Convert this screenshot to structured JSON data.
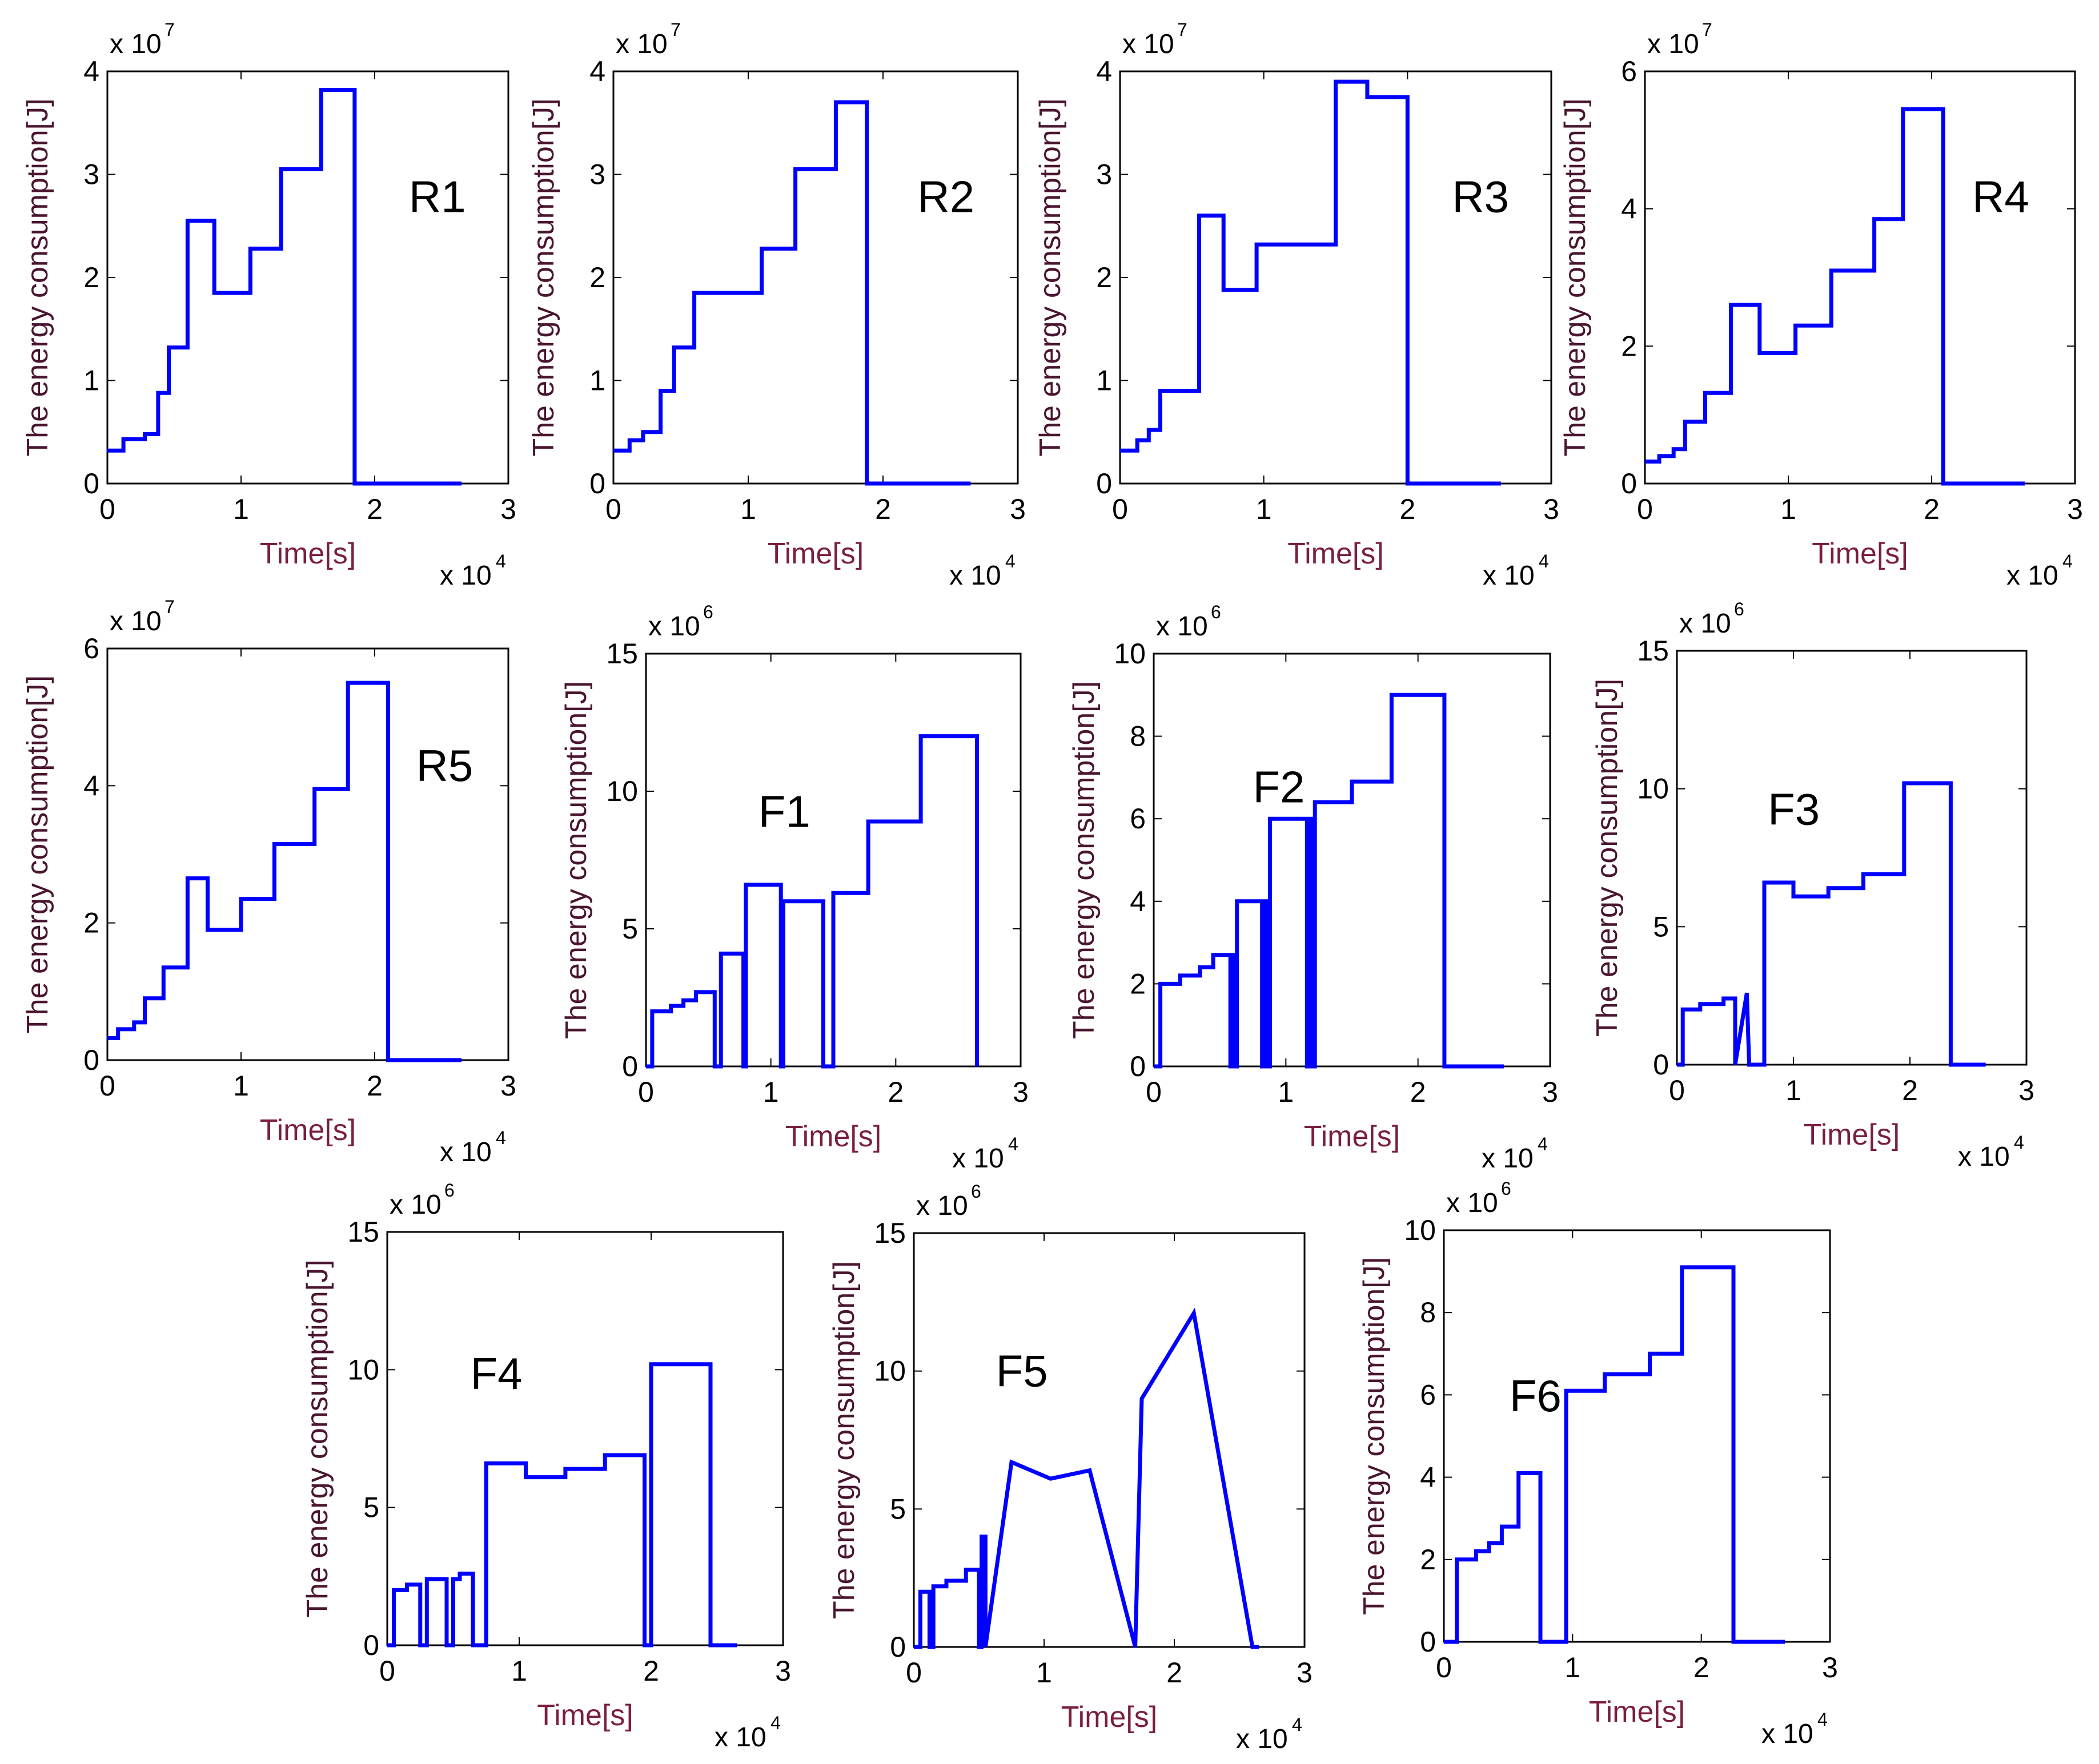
{
  "chart_data": [
    {
      "type": "line",
      "panel_label": "R1",
      "title": "",
      "xlabel": "Time[s]",
      "ylabel": "The energy consumption[J]",
      "x_multiplier": "x 10",
      "x_exponent": "4",
      "y_multiplier": "x 10",
      "y_exponent": "7",
      "xlim": [
        0,
        3
      ],
      "ylim": [
        0,
        4
      ],
      "xticks": [
        "0",
        "1",
        "2",
        "3"
      ],
      "yticks": [
        "0",
        "1",
        "2",
        "3",
        "4"
      ],
      "series": [
        {
          "name": "R1",
          "color": "#0000ff",
          "x": [
            0,
            0.12,
            0.12,
            0.28,
            0.28,
            0.38,
            0.38,
            0.46,
            0.46,
            0.6,
            0.6,
            0.8,
            0.8,
            1.07,
            1.07,
            1.3,
            1.3,
            1.6,
            1.6,
            1.85,
            1.85,
            2.65
          ],
          "y": [
            0.32,
            0.32,
            0.43,
            0.43,
            0.48,
            0.48,
            0.88,
            0.88,
            1.32,
            1.32,
            2.55,
            2.55,
            1.85,
            1.85,
            2.28,
            2.28,
            3.05,
            3.05,
            3.82,
            3.82,
            0.0,
            0.0
          ]
        }
      ]
    },
    {
      "type": "line",
      "panel_label": "R2",
      "title": "",
      "xlabel": "Time[s]",
      "ylabel": "The energy consumption[J]",
      "x_multiplier": "x 10",
      "x_exponent": "4",
      "y_multiplier": "x 10",
      "y_exponent": "7",
      "xlim": [
        0,
        3
      ],
      "ylim": [
        0,
        4
      ],
      "xticks": [
        "0",
        "1",
        "2",
        "3"
      ],
      "yticks": [
        "0",
        "1",
        "2",
        "3",
        "4"
      ],
      "series": [
        {
          "name": "R2",
          "color": "#0000ff",
          "x": [
            0,
            0.12,
            0.12,
            0.22,
            0.22,
            0.35,
            0.35,
            0.45,
            0.45,
            0.6,
            0.6,
            1.1,
            1.1,
            1.35,
            1.35,
            1.65,
            1.65,
            1.88,
            1.88,
            2.65
          ],
          "y": [
            0.32,
            0.32,
            0.42,
            0.42,
            0.5,
            0.5,
            0.9,
            0.9,
            1.32,
            1.32,
            1.85,
            1.85,
            2.28,
            2.28,
            3.05,
            3.05,
            3.7,
            3.7,
            0.0,
            0.0
          ]
        }
      ]
    },
    {
      "type": "line",
      "panel_label": "R3",
      "title": "",
      "xlabel": "Time[s]",
      "ylabel": "The energy consumption[J]",
      "x_multiplier": "x 10",
      "x_exponent": "4",
      "y_multiplier": "x 10",
      "y_exponent": "7",
      "xlim": [
        0,
        3
      ],
      "ylim": [
        0,
        4
      ],
      "xticks": [
        "0",
        "1",
        "2",
        "3"
      ],
      "yticks": [
        "0",
        "1",
        "2",
        "3",
        "4"
      ],
      "series": [
        {
          "name": "R3",
          "color": "#0000ff",
          "x": [
            0,
            0.12,
            0.12,
            0.2,
            0.2,
            0.28,
            0.28,
            0.55,
            0.55,
            0.72,
            0.72,
            0.95,
            0.95,
            1.5,
            1.5,
            1.72,
            1.72,
            2.0,
            2.0,
            2.65
          ],
          "y": [
            0.32,
            0.32,
            0.42,
            0.42,
            0.52,
            0.52,
            0.9,
            0.9,
            2.6,
            2.6,
            1.88,
            1.88,
            2.32,
            2.32,
            3.9,
            3.9,
            3.75,
            3.75,
            0.0,
            0.0
          ]
        }
      ]
    },
    {
      "type": "line",
      "panel_label": "R4",
      "title": "",
      "xlabel": "Time[s]",
      "ylabel": "The energy consumption[J]",
      "x_multiplier": "x 10",
      "x_exponent": "4",
      "y_multiplier": "x 10",
      "y_exponent": "7",
      "xlim": [
        0,
        3
      ],
      "ylim": [
        0,
        6
      ],
      "xticks": [
        "0",
        "1",
        "2",
        "3"
      ],
      "yticks": [
        "0",
        "2",
        "4",
        "6"
      ],
      "series": [
        {
          "name": "R4",
          "color": "#0000ff",
          "x": [
            0,
            0.1,
            0.1,
            0.2,
            0.2,
            0.28,
            0.28,
            0.42,
            0.42,
            0.6,
            0.6,
            0.8,
            0.8,
            1.05,
            1.05,
            1.3,
            1.3,
            1.6,
            1.6,
            1.8,
            1.8,
            2.08,
            2.08,
            2.65
          ],
          "y": [
            0.32,
            0.32,
            0.4,
            0.4,
            0.5,
            0.5,
            0.9,
            0.9,
            1.32,
            1.32,
            2.6,
            2.6,
            1.9,
            1.9,
            2.3,
            2.3,
            3.1,
            3.1,
            3.85,
            3.85,
            5.45,
            5.45,
            0.0,
            0.0
          ]
        }
      ]
    },
    {
      "type": "line",
      "panel_label": "R5",
      "title": "",
      "xlabel": "Time[s]",
      "ylabel": "The energy consumption[J]",
      "x_multiplier": "x 10",
      "x_exponent": "4",
      "y_multiplier": "x 10",
      "y_exponent": "7",
      "xlim": [
        0,
        3
      ],
      "ylim": [
        0,
        6
      ],
      "xticks": [
        "0",
        "1",
        "2",
        "3"
      ],
      "yticks": [
        "0",
        "2",
        "4",
        "6"
      ],
      "series": [
        {
          "name": "R5",
          "color": "#0000ff",
          "x": [
            0,
            0.08,
            0.08,
            0.2,
            0.2,
            0.28,
            0.28,
            0.42,
            0.42,
            0.6,
            0.6,
            0.75,
            0.75,
            1.0,
            1.0,
            1.25,
            1.25,
            1.55,
            1.55,
            1.8,
            1.8,
            2.1,
            2.1,
            2.65
          ],
          "y": [
            0.32,
            0.32,
            0.45,
            0.45,
            0.55,
            0.55,
            0.9,
            0.9,
            1.35,
            1.35,
            2.65,
            2.65,
            1.9,
            1.9,
            2.35,
            2.35,
            3.15,
            3.15,
            3.95,
            3.95,
            5.5,
            5.5,
            0.0,
            0.0
          ]
        }
      ]
    },
    {
      "type": "line",
      "panel_label": "F1",
      "title": "",
      "xlabel": "Time[s]",
      "ylabel": "The energy consumption[J]",
      "x_multiplier": "x 10",
      "x_exponent": "4",
      "y_multiplier": "x 10",
      "y_exponent": "6",
      "xlim": [
        0,
        3
      ],
      "ylim": [
        0,
        15
      ],
      "xticks": [
        "0",
        "1",
        "2",
        "3"
      ],
      "yticks": [
        "0",
        "5",
        "10",
        "15"
      ],
      "series": [
        {
          "name": "F1",
          "color": "#0000ff",
          "x": [
            0.0,
            0.05,
            0.05,
            0.2,
            0.2,
            0.3,
            0.3,
            0.4,
            0.4,
            0.55,
            0.55,
            0.6,
            0.6,
            0.78,
            0.78,
            0.8,
            0.8,
            0.8,
            0.8,
            1.08,
            1.08,
            1.1,
            1.1,
            1.1,
            1.1,
            1.42,
            1.42,
            1.5,
            1.5,
            1.5,
            1.5,
            1.78,
            1.78,
            2.2,
            2.2,
            2.65,
            2.65
          ],
          "y": [
            0.0,
            0.0,
            2.0,
            2.0,
            2.2,
            2.2,
            2.4,
            2.4,
            2.7,
            2.7,
            0.0,
            0.0,
            4.1,
            4.1,
            0.0,
            0.0,
            0.0,
            6.6,
            6.6,
            6.6,
            0.0,
            0.0,
            0.0,
            6.0,
            6.0,
            6.0,
            0.0,
            0.0,
            0.0,
            6.3,
            6.3,
            6.3,
            8.9,
            8.9,
            12.0,
            12.0,
            0.0
          ]
        }
      ]
    },
    {
      "type": "line",
      "panel_label": "F2",
      "title": "",
      "xlabel": "Time[s]",
      "ylabel": "The energy consumption[J]",
      "x_multiplier": "x 10",
      "x_exponent": "4",
      "y_multiplier": "x 10",
      "y_exponent": "6",
      "xlim": [
        0,
        3
      ],
      "ylim": [
        0,
        10
      ],
      "xticks": [
        "0",
        "1",
        "2",
        "3"
      ],
      "yticks": [
        "0",
        "2",
        "4",
        "6",
        "8",
        "10"
      ],
      "series": [
        {
          "name": "F2",
          "color": "#0000ff",
          "x": [
            0.0,
            0.05,
            0.05,
            0.2,
            0.2,
            0.35,
            0.35,
            0.45,
            0.45,
            0.58,
            0.58,
            0.6,
            0.6,
            0.62,
            0.62,
            0.63,
            0.63,
            0.82,
            0.82,
            0.85,
            0.85,
            0.86,
            0.86,
            0.88,
            0.88,
            1.16,
            1.16,
            1.18,
            1.18,
            1.2,
            1.2,
            1.22,
            1.22,
            1.5,
            1.5,
            1.8,
            1.8,
            2.2,
            2.2,
            2.65
          ],
          "y": [
            0.0,
            0.0,
            2.0,
            2.0,
            2.2,
            2.2,
            2.4,
            2.4,
            2.7,
            2.7,
            0.0,
            0.0,
            2.7,
            2.7,
            0.0,
            0.0,
            4.0,
            4.0,
            0.0,
            0.0,
            4.0,
            4.0,
            0.0,
            0.0,
            6.0,
            6.0,
            0.0,
            0.0,
            6.0,
            6.0,
            0.0,
            0.0,
            6.4,
            6.4,
            6.9,
            6.9,
            9.0,
            9.0,
            0.0,
            0.0
          ]
        }
      ]
    },
    {
      "type": "line",
      "panel_label": "F3",
      "title": "",
      "xlabel": "Time[s]",
      "ylabel": "The energy consumption[J]",
      "x_multiplier": "x 10",
      "x_exponent": "4",
      "y_multiplier": "x 10",
      "y_exponent": "6",
      "xlim": [
        0,
        3
      ],
      "ylim": [
        0,
        15
      ],
      "xticks": [
        "0",
        "1",
        "2",
        "3"
      ],
      "yticks": [
        "0",
        "5",
        "10",
        "15"
      ],
      "series": [
        {
          "name": "F3",
          "color": "#0000ff",
          "x": [
            0.0,
            0.05,
            0.05,
            0.2,
            0.2,
            0.4,
            0.4,
            0.5,
            0.5,
            0.6,
            0.6,
            0.62,
            0.62,
            0.75,
            0.75,
            1.0,
            1.0,
            1.3,
            1.3,
            1.6,
            1.6,
            1.95,
            1.95,
            2.35,
            2.35,
            2.65
          ],
          "y": [
            0.0,
            0.0,
            2.0,
            2.0,
            2.2,
            2.2,
            2.4,
            2.4,
            0.0,
            2.6,
            2.6,
            0.0,
            0.0,
            0.0,
            6.6,
            6.6,
            6.1,
            6.1,
            6.4,
            6.4,
            6.9,
            6.9,
            10.2,
            10.2,
            0.0,
            0.0
          ]
        }
      ]
    },
    {
      "type": "line",
      "panel_label": "F4",
      "title": "",
      "xlabel": "Time[s]",
      "ylabel": "The energy consumption[J]",
      "x_multiplier": "x 10",
      "x_exponent": "4",
      "y_multiplier": "x 10",
      "y_exponent": "6",
      "xlim": [
        0,
        3
      ],
      "ylim": [
        0,
        15
      ],
      "xticks": [
        "0",
        "1",
        "2",
        "3"
      ],
      "yticks": [
        "0",
        "5",
        "10",
        "15"
      ],
      "series": [
        {
          "name": "F4",
          "color": "#0000ff",
          "x": [
            0.0,
            0.05,
            0.05,
            0.15,
            0.15,
            0.25,
            0.25,
            0.3,
            0.3,
            0.45,
            0.45,
            0.5,
            0.5,
            0.55,
            0.55,
            0.65,
            0.65,
            0.72,
            0.72,
            0.75,
            0.75,
            1.05,
            1.05,
            1.35,
            1.35,
            1.65,
            1.65,
            1.95,
            1.95,
            2.0,
            2.0,
            2.45,
            2.45,
            2.65
          ],
          "y": [
            0.0,
            0.0,
            2.0,
            2.0,
            2.2,
            2.2,
            0.0,
            0.0,
            2.4,
            2.4,
            0.0,
            0.0,
            2.4,
            2.4,
            2.6,
            2.6,
            0.0,
            0.0,
            0.0,
            0.0,
            6.6,
            6.6,
            6.1,
            6.1,
            6.4,
            6.4,
            6.9,
            6.9,
            0.0,
            0.0,
            10.2,
            10.2,
            0.0,
            0.0
          ]
        }
      ]
    },
    {
      "type": "line",
      "panel_label": "F5",
      "title": "",
      "xlabel": "Time[s]",
      "ylabel": "The energy consumption[J]",
      "x_multiplier": "x 10",
      "x_exponent": "4",
      "y_multiplier": "x 10",
      "y_exponent": "6",
      "xlim": [
        0,
        3
      ],
      "ylim": [
        0,
        15
      ],
      "xticks": [
        "0",
        "1",
        "2",
        "3"
      ],
      "yticks": [
        "0",
        "5",
        "10",
        "15"
      ],
      "series": [
        {
          "name": "F5",
          "color": "#0000ff",
          "x": [
            0.0,
            0.05,
            0.05,
            0.12,
            0.12,
            0.15,
            0.15,
            0.25,
            0.25,
            0.4,
            0.4,
            0.5,
            0.5,
            0.52,
            0.52,
            0.55,
            0.55,
            0.75,
            0.75,
            1.05,
            1.05,
            1.35,
            1.35,
            1.7,
            1.7,
            1.75,
            1.75,
            2.15,
            2.15,
            2.6,
            2.6,
            2.65
          ],
          "y": [
            0.0,
            0.0,
            2.0,
            2.0,
            0.0,
            0.0,
            2.2,
            2.2,
            2.4,
            2.4,
            2.8,
            2.8,
            0.0,
            0.0,
            4.0,
            4.0,
            0.0,
            6.7,
            6.7,
            6.1,
            6.1,
            6.4,
            6.4,
            0.0,
            0.0,
            9.0,
            9.0,
            12.1,
            12.1,
            0.0,
            0.0,
            0.0
          ]
        }
      ]
    },
    {
      "type": "line",
      "panel_label": "F6",
      "title": "",
      "xlabel": "Time[s]",
      "ylabel": "The energy consumption[J]",
      "x_multiplier": "x 10",
      "x_exponent": "4",
      "y_multiplier": "x 10",
      "y_exponent": "6",
      "xlim": [
        0,
        3
      ],
      "ylim": [
        0,
        10
      ],
      "xticks": [
        "0",
        "1",
        "2",
        "3"
      ],
      "yticks": [
        "0",
        "2",
        "4",
        "6",
        "8",
        "10"
      ],
      "series": [
        {
          "name": "F6",
          "color": "#0000ff",
          "x": [
            0.0,
            0.1,
            0.1,
            0.25,
            0.25,
            0.35,
            0.35,
            0.45,
            0.45,
            0.58,
            0.58,
            0.75,
            0.75,
            0.95,
            0.95,
            1.25,
            1.25,
            1.6,
            1.6,
            1.85,
            1.85,
            2.25,
            2.25,
            2.65
          ],
          "y": [
            0.0,
            0.0,
            2.0,
            2.0,
            2.2,
            2.2,
            2.4,
            2.4,
            2.8,
            2.8,
            4.1,
            4.1,
            0.0,
            0.0,
            6.1,
            6.1,
            6.5,
            6.5,
            7.0,
            7.0,
            9.1,
            9.1,
            0.0,
            0.0
          ]
        }
      ]
    }
  ]
}
